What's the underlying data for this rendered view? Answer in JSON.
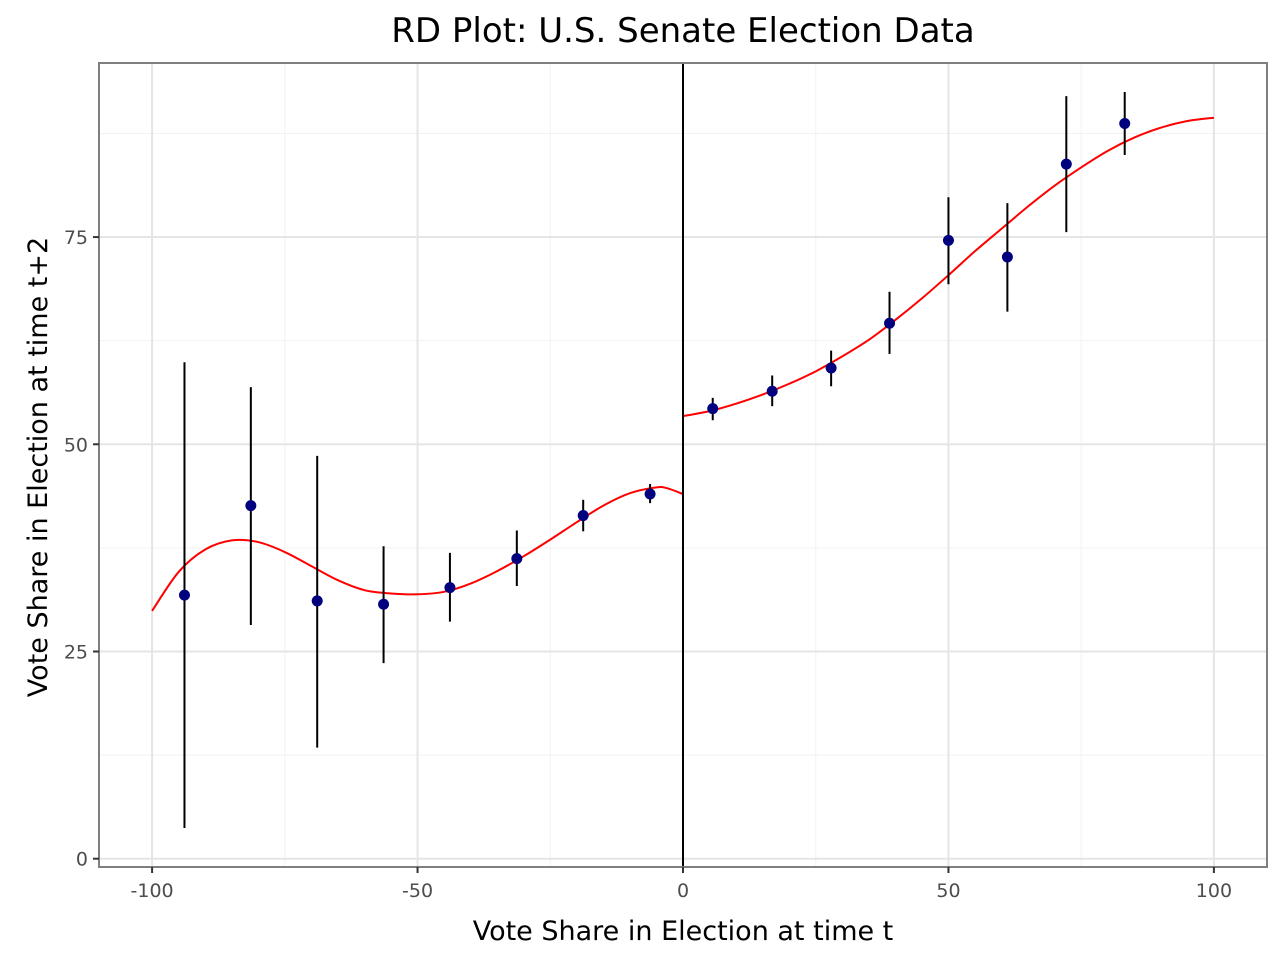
{
  "chart_data": {
    "type": "scatter",
    "title": "RD Plot: U.S. Senate Election Data",
    "xlabel": "Vote Share in Election at time t",
    "ylabel": "Vote Share in Election at time t+2",
    "xlim": [
      -110,
      110
    ],
    "ylim": [
      -1,
      96
    ],
    "x_ticks": [
      -100,
      -50,
      0,
      50,
      100
    ],
    "x_tick_labels": [
      "-100",
      "-50",
      "0",
      "50",
      "100"
    ],
    "y_ticks": [
      0,
      25,
      50,
      75
    ],
    "y_tick_labels": [
      "0",
      "25",
      "50",
      "75"
    ],
    "grid": true,
    "cutoff": 0,
    "colors": {
      "points": "#00007f",
      "fit": "#ff0000",
      "error_bars": "#000000",
      "cutoff_line": "#000000",
      "grid_major": "#e5e5e5",
      "grid_minor": "#f2f2f2",
      "panel_border": "#7f7f7f"
    },
    "points": [
      {
        "x": -93.9,
        "y": 31.8,
        "lo": 3.7,
        "hi": 59.9
      },
      {
        "x": -81.4,
        "y": 42.6,
        "lo": 28.2,
        "hi": 56.9
      },
      {
        "x": -68.9,
        "y": 31.1,
        "lo": 13.4,
        "hi": 48.6
      },
      {
        "x": -56.4,
        "y": 30.7,
        "lo": 23.6,
        "hi": 37.7
      },
      {
        "x": -43.9,
        "y": 32.7,
        "lo": 28.6,
        "hi": 36.9
      },
      {
        "x": -31.3,
        "y": 36.2,
        "lo": 32.9,
        "hi": 39.6
      },
      {
        "x": -18.8,
        "y": 41.4,
        "lo": 39.5,
        "hi": 43.3
      },
      {
        "x": -6.2,
        "y": 44.0,
        "lo": 42.9,
        "hi": 45.2
      },
      {
        "x": 5.6,
        "y": 54.3,
        "lo": 52.9,
        "hi": 55.6
      },
      {
        "x": 16.8,
        "y": 56.4,
        "lo": 54.6,
        "hi": 58.3
      },
      {
        "x": 27.9,
        "y": 59.2,
        "lo": 57.0,
        "hi": 61.3
      },
      {
        "x": 38.9,
        "y": 64.6,
        "lo": 60.9,
        "hi": 68.4
      },
      {
        "x": 50.0,
        "y": 74.6,
        "lo": 69.3,
        "hi": 79.8
      },
      {
        "x": 61.1,
        "y": 72.6,
        "lo": 66.0,
        "hi": 79.1
      },
      {
        "x": 72.2,
        "y": 83.8,
        "lo": 75.6,
        "hi": 92.0
      },
      {
        "x": 83.2,
        "y": 88.7,
        "lo": 84.9,
        "hi": 92.5
      }
    ],
    "fit_left": {
      "x": [
        -100,
        -95,
        -90,
        -85,
        -80,
        -75,
        -70,
        -65,
        -60,
        -55,
        -50,
        -45,
        -40,
        -35,
        -30,
        -25,
        -20,
        -15,
        -10,
        -5,
        -3,
        0
      ],
      "y": [
        29.9,
        34.6,
        37.3,
        38.4,
        38.2,
        37.0,
        35.3,
        33.6,
        32.4,
        32.0,
        31.9,
        32.2,
        33.2,
        34.7,
        36.5,
        38.5,
        40.6,
        42.6,
        44.1,
        44.8,
        44.7,
        44.0
      ]
    },
    "fit_right": {
      "x": [
        0,
        5,
        10,
        15,
        20,
        25,
        30,
        35,
        40,
        45,
        50,
        55,
        60,
        65,
        70,
        75,
        80,
        85,
        90,
        95,
        100
      ],
      "y": [
        53.4,
        54.0,
        54.9,
        56.0,
        57.3,
        58.8,
        60.6,
        62.6,
        65.0,
        67.6,
        70.4,
        73.3,
        76.0,
        78.7,
        81.2,
        83.4,
        85.4,
        87.0,
        88.2,
        89.0,
        89.4
      ]
    }
  }
}
